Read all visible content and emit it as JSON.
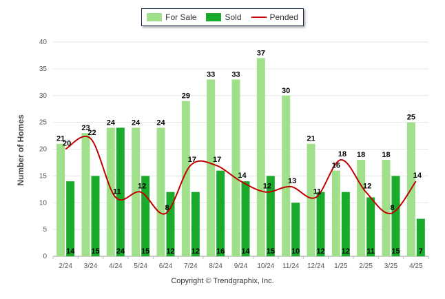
{
  "chart_data": {
    "type": "bar",
    "ylabel": "Number of Homes",
    "ylim": [
      0,
      40
    ],
    "yticks": [
      0,
      5,
      10,
      15,
      20,
      25,
      30,
      35,
      40
    ],
    "categories": [
      "2/24",
      "3/24",
      "4/24",
      "5/24",
      "6/24",
      "7/24",
      "8/24",
      "9/24",
      "10/24",
      "11/24",
      "12/24",
      "1/25",
      "2/25",
      "3/25",
      "4/25"
    ],
    "series": [
      {
        "name": "For Sale",
        "type": "bar",
        "color": "#a0e08a",
        "values": [
          21,
          23,
          24,
          24,
          24,
          29,
          33,
          33,
          37,
          30,
          21,
          16,
          18,
          18,
          25
        ]
      },
      {
        "name": "Sold",
        "type": "bar",
        "color": "#1aab2c",
        "values": [
          14,
          15,
          24,
          15,
          12,
          12,
          16,
          14,
          15,
          10,
          12,
          12,
          11,
          15,
          7
        ]
      },
      {
        "name": "Pended",
        "type": "line",
        "color": "#c00000",
        "values": [
          20,
          22,
          11,
          12,
          8,
          17,
          17,
          14,
          12,
          13,
          11,
          18,
          12,
          8,
          14
        ]
      }
    ],
    "legend": "top-center",
    "grid": true
  },
  "footer": {
    "copyright": "Copyright © Trendgraphix, Inc."
  }
}
